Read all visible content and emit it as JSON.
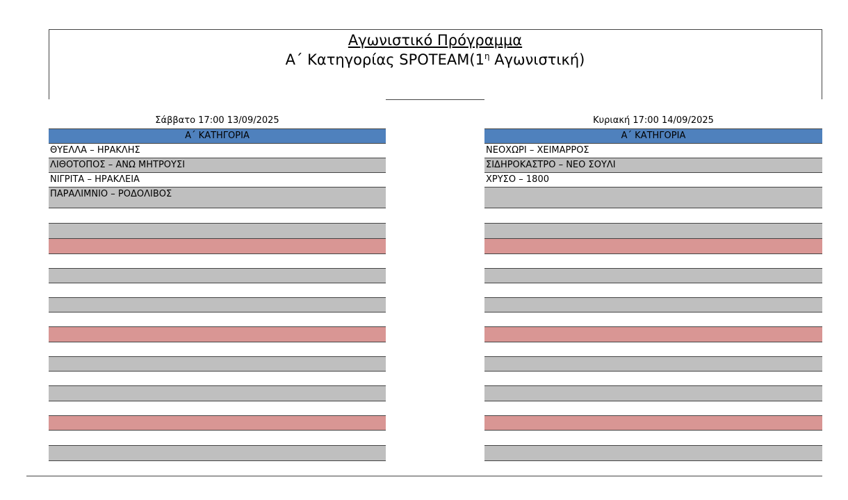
{
  "header": {
    "title": "Αγωνιστικό Πρόγραμμα",
    "subtitle": {
      "text": "Α΄ Κατηγορίας SPOTEAM(1",
      "superscript": "η",
      "after": " Αγωνιστική)"
    }
  },
  "left": {
    "date": "Σάββατο 17:00 13/09/2025",
    "category": "Α΄ ΚΑΤΗΓΟΡΙΑ",
    "matches": [
      "ΘΥΕΛΛΑ – ΗΡΑΚΛΗΣ",
      "ΛΙΘΟΤΟΠΟΣ – ΑΝΩ ΜΗΤΡΟΥΣΙ",
      "ΝΙΓΡΙΤΑ – ΗΡΑΚΛΕΙΑ",
      "ΠΑΡΑΛΙΜΝΙΟ – ΡΟΔΟΛΙΒΟΣ"
    ]
  },
  "right": {
    "date": "Κυριακή 17:00 14/09/2025",
    "category": "Α΄ ΚΑΤΗΓΟΡΙΑ",
    "matches": [
      "ΝΕΟΧΩΡΙ – ΧΕΙΜΑΡΡΟΣ",
      "ΣΙΔΗΡΟΚΑΣΤΡΟ – ΝΕΟ ΣΟΥΛΙ",
      "ΧΡΥΣΟ – 1800"
    ]
  }
}
